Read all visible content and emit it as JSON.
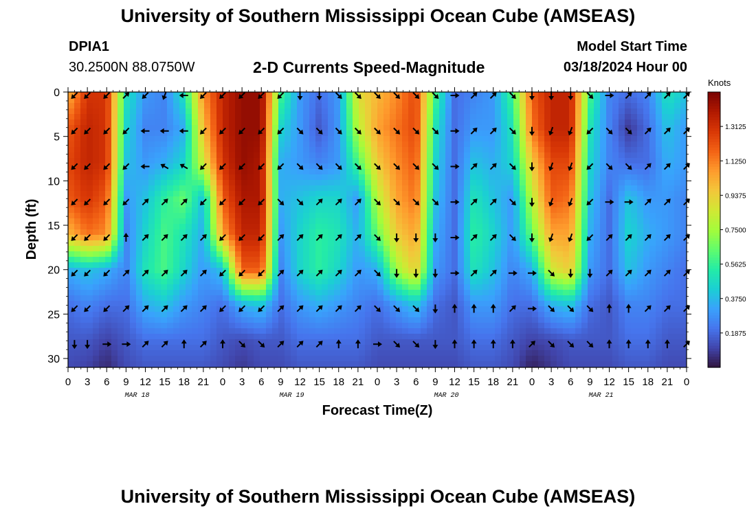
{
  "header": {
    "title_top": "University of Southern Mississippi Ocean Cube (AMSEAS)",
    "title_bottom": "University of Southern Mississippi Ocean Cube (AMSEAS)",
    "station_id": "DPIA1",
    "station_coords": "30.2500N  88.0750W",
    "plot_title": "2-D Currents Speed-Magnitude",
    "model_start_label": "Model Start Time",
    "model_start_value": "03/18/2024 Hour 00"
  },
  "colors": {
    "colormap": [
      "#30123b",
      "#4145ab",
      "#4675ed",
      "#39a2fc",
      "#1bcfd4",
      "#24eca6",
      "#61fc6c",
      "#a4fc3b",
      "#d1e834",
      "#f3c63a",
      "#fe9b2d",
      "#f36315",
      "#d93806",
      "#b11901",
      "#7a0402"
    ]
  },
  "chart_data": {
    "type": "heatmap",
    "title": "2-D Currents Speed-Magnitude",
    "xlabel": "Forecast Time(Z)",
    "ylabel": "Depth (ft)",
    "x_range_hours": [
      0,
      96
    ],
    "x_tick_labels": [
      "0",
      "3",
      "6",
      "9",
      "12",
      "15",
      "18",
      "21",
      "0",
      "3",
      "6",
      "9",
      "12",
      "15",
      "18",
      "21",
      "0",
      "3",
      "6",
      "9",
      "12",
      "15",
      "18",
      "21",
      "0",
      "3",
      "6",
      "9",
      "12",
      "15",
      "18",
      "21",
      "0"
    ],
    "date_labels": [
      "MAR 18",
      "MAR 19",
      "MAR 20",
      "MAR 21"
    ],
    "y_range_ft": [
      0,
      31
    ],
    "y_ticks": [
      0,
      5,
      10,
      15,
      20,
      25,
      30
    ],
    "colorbar": {
      "title": "Knots",
      "range": [
        0,
        1.5
      ],
      "tick_values": [
        0.1875,
        0.375,
        0.5625,
        0.75,
        0.9375,
        1.125,
        1.3125
      ],
      "tick_labels": [
        "0.1875",
        "0.3750",
        "0.5625",
        "0.7500",
        "0.9375",
        "1.1250",
        "1.3125"
      ]
    },
    "hours": [
      0,
      3,
      6,
      9,
      12,
      15,
      18,
      21,
      24,
      27,
      30,
      33,
      36,
      39,
      42,
      45,
      48,
      51,
      54,
      57,
      60,
      63,
      66,
      69,
      72,
      75,
      78,
      81,
      84,
      87,
      90,
      93,
      96
    ],
    "depths_ft": [
      0,
      4,
      8,
      12,
      16,
      20,
      24,
      28,
      31
    ],
    "speed_knots": [
      [
        1.0,
        1.3,
        1.3,
        0.5,
        0.3,
        0.25,
        0.5,
        1.1,
        1.35,
        1.45,
        1.45,
        0.6,
        0.3,
        0.2,
        0.3,
        0.9,
        1.0,
        1.1,
        1.25,
        0.6,
        0.2,
        0.25,
        0.3,
        0.6,
        1.2,
        1.35,
        1.35,
        0.6,
        0.25,
        0.2,
        0.25,
        0.5,
        0.4
      ],
      [
        1.2,
        1.35,
        1.3,
        0.45,
        0.25,
        0.25,
        0.35,
        1.0,
        1.35,
        1.45,
        1.45,
        0.45,
        0.3,
        0.15,
        0.3,
        0.8,
        1.05,
        1.15,
        1.25,
        0.5,
        0.2,
        0.3,
        0.3,
        0.5,
        1.15,
        1.35,
        1.35,
        0.5,
        0.25,
        0.08,
        0.2,
        0.4,
        0.3
      ],
      [
        1.25,
        1.35,
        1.3,
        0.4,
        0.3,
        0.35,
        0.45,
        0.85,
        1.3,
        1.45,
        1.4,
        0.35,
        0.3,
        0.25,
        0.3,
        0.6,
        0.95,
        1.1,
        1.2,
        0.45,
        0.2,
        0.4,
        0.35,
        0.45,
        0.95,
        1.25,
        1.25,
        0.45,
        0.25,
        0.2,
        0.2,
        0.35,
        0.3
      ],
      [
        1.2,
        1.3,
        1.2,
        0.3,
        0.4,
        0.55,
        0.65,
        0.4,
        1.2,
        1.4,
        1.4,
        0.35,
        0.4,
        0.45,
        0.45,
        0.3,
        0.8,
        1.05,
        1.15,
        0.4,
        0.2,
        0.5,
        0.4,
        0.3,
        0.8,
        1.2,
        1.15,
        0.4,
        0.2,
        0.4,
        0.3,
        0.3,
        0.25
      ],
      [
        1.0,
        1.15,
        1.1,
        0.25,
        0.45,
        0.6,
        0.5,
        0.35,
        1.05,
        1.35,
        1.35,
        0.3,
        0.45,
        0.55,
        0.5,
        0.35,
        0.65,
        0.95,
        1.05,
        0.35,
        0.2,
        0.55,
        0.45,
        0.3,
        0.65,
        1.05,
        1.05,
        0.35,
        0.2,
        0.45,
        0.35,
        0.3,
        0.25
      ],
      [
        0.35,
        0.4,
        0.35,
        0.25,
        0.5,
        0.6,
        0.45,
        0.3,
        0.4,
        1.2,
        1.2,
        0.25,
        0.45,
        0.55,
        0.45,
        0.3,
        0.35,
        0.75,
        0.95,
        0.3,
        0.2,
        0.5,
        0.4,
        0.25,
        0.35,
        0.85,
        0.95,
        0.3,
        0.2,
        0.4,
        0.3,
        0.25,
        0.2
      ],
      [
        0.2,
        0.25,
        0.2,
        0.2,
        0.35,
        0.4,
        0.3,
        0.25,
        0.2,
        0.35,
        0.4,
        0.2,
        0.3,
        0.35,
        0.3,
        0.25,
        0.2,
        0.3,
        0.4,
        0.2,
        0.15,
        0.3,
        0.3,
        0.2,
        0.2,
        0.35,
        0.4,
        0.2,
        0.15,
        0.25,
        0.25,
        0.2,
        0.2
      ],
      [
        0.15,
        0.15,
        0.1,
        0.15,
        0.2,
        0.2,
        0.2,
        0.2,
        0.15,
        0.12,
        0.15,
        0.15,
        0.2,
        0.2,
        0.2,
        0.2,
        0.15,
        0.15,
        0.15,
        0.15,
        0.15,
        0.2,
        0.2,
        0.15,
        0.1,
        0.12,
        0.15,
        0.15,
        0.15,
        0.2,
        0.2,
        0.15,
        0.15
      ],
      [
        0.12,
        0.1,
        0.05,
        0.12,
        0.15,
        0.15,
        0.15,
        0.15,
        0.12,
        0.08,
        0.12,
        0.12,
        0.15,
        0.15,
        0.15,
        0.15,
        0.12,
        0.12,
        0.12,
        0.12,
        0.12,
        0.15,
        0.15,
        0.12,
        0.03,
        0.08,
        0.12,
        0.12,
        0.12,
        0.15,
        0.15,
        0.12,
        0.12
      ]
    ],
    "arrow_hours": [
      1,
      3,
      6,
      9,
      12,
      15,
      18,
      21,
      24,
      27,
      30,
      33,
      36,
      39,
      42,
      45,
      48,
      51,
      54,
      57,
      60,
      63,
      66,
      69,
      72,
      75,
      78,
      81,
      84,
      87,
      90,
      93,
      96
    ],
    "arrow_depths_ft": [
      0,
      4,
      8,
      12,
      16,
      20,
      24,
      28
    ],
    "arrow_direction_deg": [
      [
        225,
        225,
        225,
        45,
        225,
        200,
        270,
        225,
        225,
        225,
        225,
        225,
        180,
        180,
        135,
        135,
        135,
        135,
        135,
        135,
        90,
        45,
        45,
        135,
        180,
        180,
        180,
        135,
        90,
        45,
        45,
        45,
        45
      ],
      [
        225,
        225,
        225,
        225,
        270,
        270,
        270,
        225,
        225,
        225,
        225,
        225,
        135,
        135,
        135,
        135,
        135,
        135,
        135,
        135,
        90,
        45,
        45,
        135,
        180,
        200,
        200,
        225,
        135,
        135,
        45,
        45,
        45
      ],
      [
        225,
        225,
        225,
        225,
        270,
        300,
        300,
        225,
        225,
        225,
        225,
        225,
        135,
        135,
        135,
        135,
        135,
        135,
        135,
        135,
        90,
        45,
        45,
        135,
        180,
        200,
        200,
        225,
        135,
        135,
        45,
        45,
        45
      ],
      [
        225,
        225,
        225,
        225,
        45,
        45,
        45,
        225,
        225,
        225,
        225,
        135,
        135,
        45,
        45,
        45,
        135,
        135,
        135,
        135,
        90,
        45,
        45,
        135,
        180,
        200,
        200,
        225,
        90,
        90,
        45,
        45,
        45
      ],
      [
        225,
        225,
        225,
        0,
        45,
        45,
        45,
        45,
        225,
        225,
        225,
        45,
        45,
        45,
        45,
        45,
        135,
        180,
        180,
        180,
        90,
        45,
        45,
        135,
        180,
        200,
        200,
        225,
        45,
        45,
        45,
        45,
        45
      ],
      [
        225,
        225,
        225,
        45,
        45,
        45,
        45,
        45,
        225,
        225,
        225,
        45,
        45,
        45,
        45,
        45,
        135,
        180,
        180,
        180,
        90,
        45,
        45,
        90,
        90,
        135,
        180,
        180,
        45,
        45,
        45,
        45,
        45
      ],
      [
        225,
        225,
        225,
        45,
        45,
        45,
        45,
        45,
        225,
        225,
        225,
        45,
        45,
        45,
        45,
        45,
        135,
        135,
        135,
        180,
        0,
        0,
        0,
        45,
        90,
        135,
        135,
        135,
        0,
        0,
        45,
        45,
        45
      ],
      [
        180,
        180,
        90,
        90,
        45,
        45,
        0,
        45,
        0,
        135,
        135,
        45,
        45,
        45,
        0,
        0,
        90,
        135,
        135,
        180,
        0,
        0,
        0,
        0,
        45,
        135,
        135,
        135,
        0,
        0,
        0,
        0,
        45
      ]
    ]
  }
}
